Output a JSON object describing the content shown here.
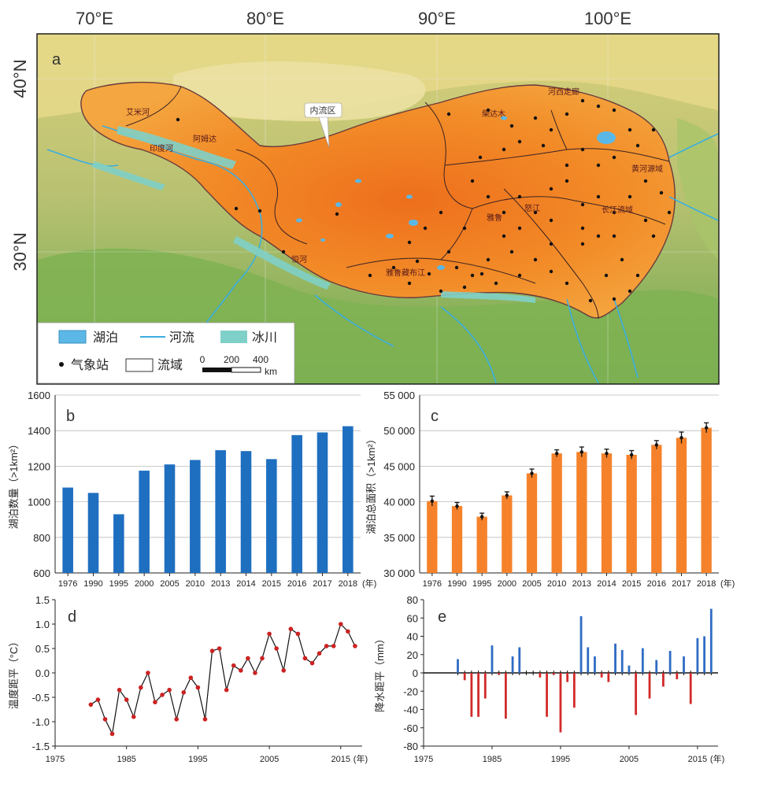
{
  "map": {
    "panel_label": "a",
    "lon_labels": [
      "70°E",
      "80°E",
      "90°E",
      "100°E"
    ],
    "lat_labels": [
      "40°N",
      "30°N"
    ],
    "callout": "内流区",
    "basin_labels": [
      "艾米河",
      "阿姆达",
      "印度河",
      "柴达木",
      "河西走廊",
      "黄河源域",
      "长江流域",
      "怒江",
      "雅鲁",
      "雅鲁藏布江",
      "恒河"
    ],
    "legend": {
      "lake": "湖泊",
      "river": "河流",
      "glacier": "冰川",
      "station": "气象站",
      "basin": "流域",
      "scale_ticks": [
        "0",
        "200",
        "400"
      ],
      "scale_unit": "km"
    },
    "colors": {
      "plateau": "#f28c28",
      "plateau_core": "#ee7a1e",
      "lowland": "#8fb85a",
      "highland": "#e8d78a",
      "lake": "#5bb8e6",
      "river": "#3aaee0",
      "glacier": "#7fd0c8"
    }
  },
  "chart_data": [
    {
      "id": "b",
      "panel_label": "b",
      "type": "bar",
      "categories": [
        "1976",
        "1990",
        "1995",
        "2000",
        "2005",
        "2010",
        "2013",
        "2014",
        "2015",
        "2016",
        "2017",
        "2018"
      ],
      "values": [
        1080,
        1050,
        930,
        1175,
        1210,
        1235,
        1290,
        1285,
        1240,
        1375,
        1390,
        1425
      ],
      "ylabel": "湖泊数量（>1km²）",
      "x_unit": "(年)",
      "ylim": [
        600,
        1600
      ],
      "yticks": [
        "600",
        "800",
        "1000",
        "1200",
        "1400",
        "1600"
      ],
      "color": "#1f6fc0"
    },
    {
      "id": "c",
      "panel_label": "c",
      "type": "bar",
      "categories": [
        "1976",
        "1990",
        "1995",
        "2000",
        "2005",
        "2010",
        "2013",
        "2014",
        "2015",
        "2016",
        "2017",
        "2018"
      ],
      "values": [
        40100,
        39400,
        37900,
        40900,
        44000,
        46800,
        47000,
        46800,
        46600,
        48000,
        49000,
        50400
      ],
      "errors": [
        700,
        500,
        500,
        500,
        600,
        500,
        700,
        600,
        600,
        600,
        800,
        700
      ],
      "ylabel": "湖泊总面积（>1km²）",
      "x_unit": "(年)",
      "ylim": [
        30000,
        55000
      ],
      "yticks": [
        "30 000",
        "35 000",
        "40 000",
        "45 000",
        "50 000",
        "55 000"
      ],
      "color": "#f5822a"
    },
    {
      "id": "d",
      "panel_label": "d",
      "type": "line",
      "x": [
        1980,
        1981,
        1982,
        1983,
        1984,
        1985,
        1986,
        1987,
        1988,
        1989,
        1990,
        1991,
        1992,
        1993,
        1994,
        1995,
        1996,
        1997,
        1998,
        1999,
        2000,
        2001,
        2002,
        2003,
        2004,
        2005,
        2006,
        2007,
        2008,
        2009,
        2010,
        2011,
        2012,
        2013,
        2014,
        2015,
        2016
      ],
      "y": [
        -0.65,
        -0.55,
        -0.95,
        -1.25,
        -0.35,
        -0.55,
        -0.9,
        -0.3,
        0.0,
        -0.6,
        -0.45,
        -0.35,
        -0.95,
        -0.4,
        -0.1,
        -0.3,
        -0.95,
        0.45,
        0.5,
        -0.35,
        0.15,
        0.05,
        0.3,
        0.0,
        0.3,
        0.8,
        0.5,
        0.05,
        0.9,
        0.8,
        0.3,
        0.2,
        0.4,
        0.55,
        0.55,
        1.0,
        0.85
      ],
      "extra_point": 0.55,
      "ylabel": "温度距平（°C）",
      "xticks": [
        "1975",
        "1985",
        "1995",
        "2005",
        "2015"
      ],
      "x_unit": "(年)",
      "xlim": [
        1975,
        2018
      ],
      "ylim": [
        -1.5,
        1.5
      ],
      "yticks": [
        "-1.5",
        "-1.0",
        "-0.5",
        "0.0",
        "0.5",
        "1.0",
        "1.5"
      ],
      "line_color": "#111111",
      "point_color": "#cc2222"
    },
    {
      "id": "e",
      "panel_label": "e",
      "type": "bar",
      "x": [
        1980,
        1981,
        1982,
        1983,
        1984,
        1985,
        1986,
        1987,
        1988,
        1989,
        1990,
        1991,
        1992,
        1993,
        1994,
        1995,
        1996,
        1997,
        1998,
        1999,
        2000,
        2001,
        2002,
        2003,
        2004,
        2005,
        2006,
        2007,
        2008,
        2009,
        2010,
        2011,
        2012,
        2013,
        2014,
        2015,
        2016,
        2017
      ],
      "values": [
        15,
        -8,
        -48,
        -48,
        -28,
        30,
        -2,
        -50,
        18,
        28,
        0,
        0,
        -5,
        -48,
        -2,
        -65,
        -10,
        -38,
        62,
        28,
        18,
        -5,
        -10,
        32,
        25,
        8,
        -46,
        27,
        -28,
        14,
        -15,
        24,
        -7,
        18,
        -34,
        38,
        40,
        70
      ],
      "ylabel": "降水距平（mm）",
      "xticks": [
        "1975",
        "1985",
        "1995",
        "2005",
        "2015"
      ],
      "x_unit": "(年)",
      "xlim": [
        1975,
        2018
      ],
      "ylim": [
        -80,
        80
      ],
      "yticks": [
        "-80",
        "-60",
        "-40",
        "-20",
        "0",
        "20",
        "40",
        "60",
        "80"
      ],
      "pos_color": "#2f6cc4",
      "neg_color": "#d22a2a"
    }
  ]
}
